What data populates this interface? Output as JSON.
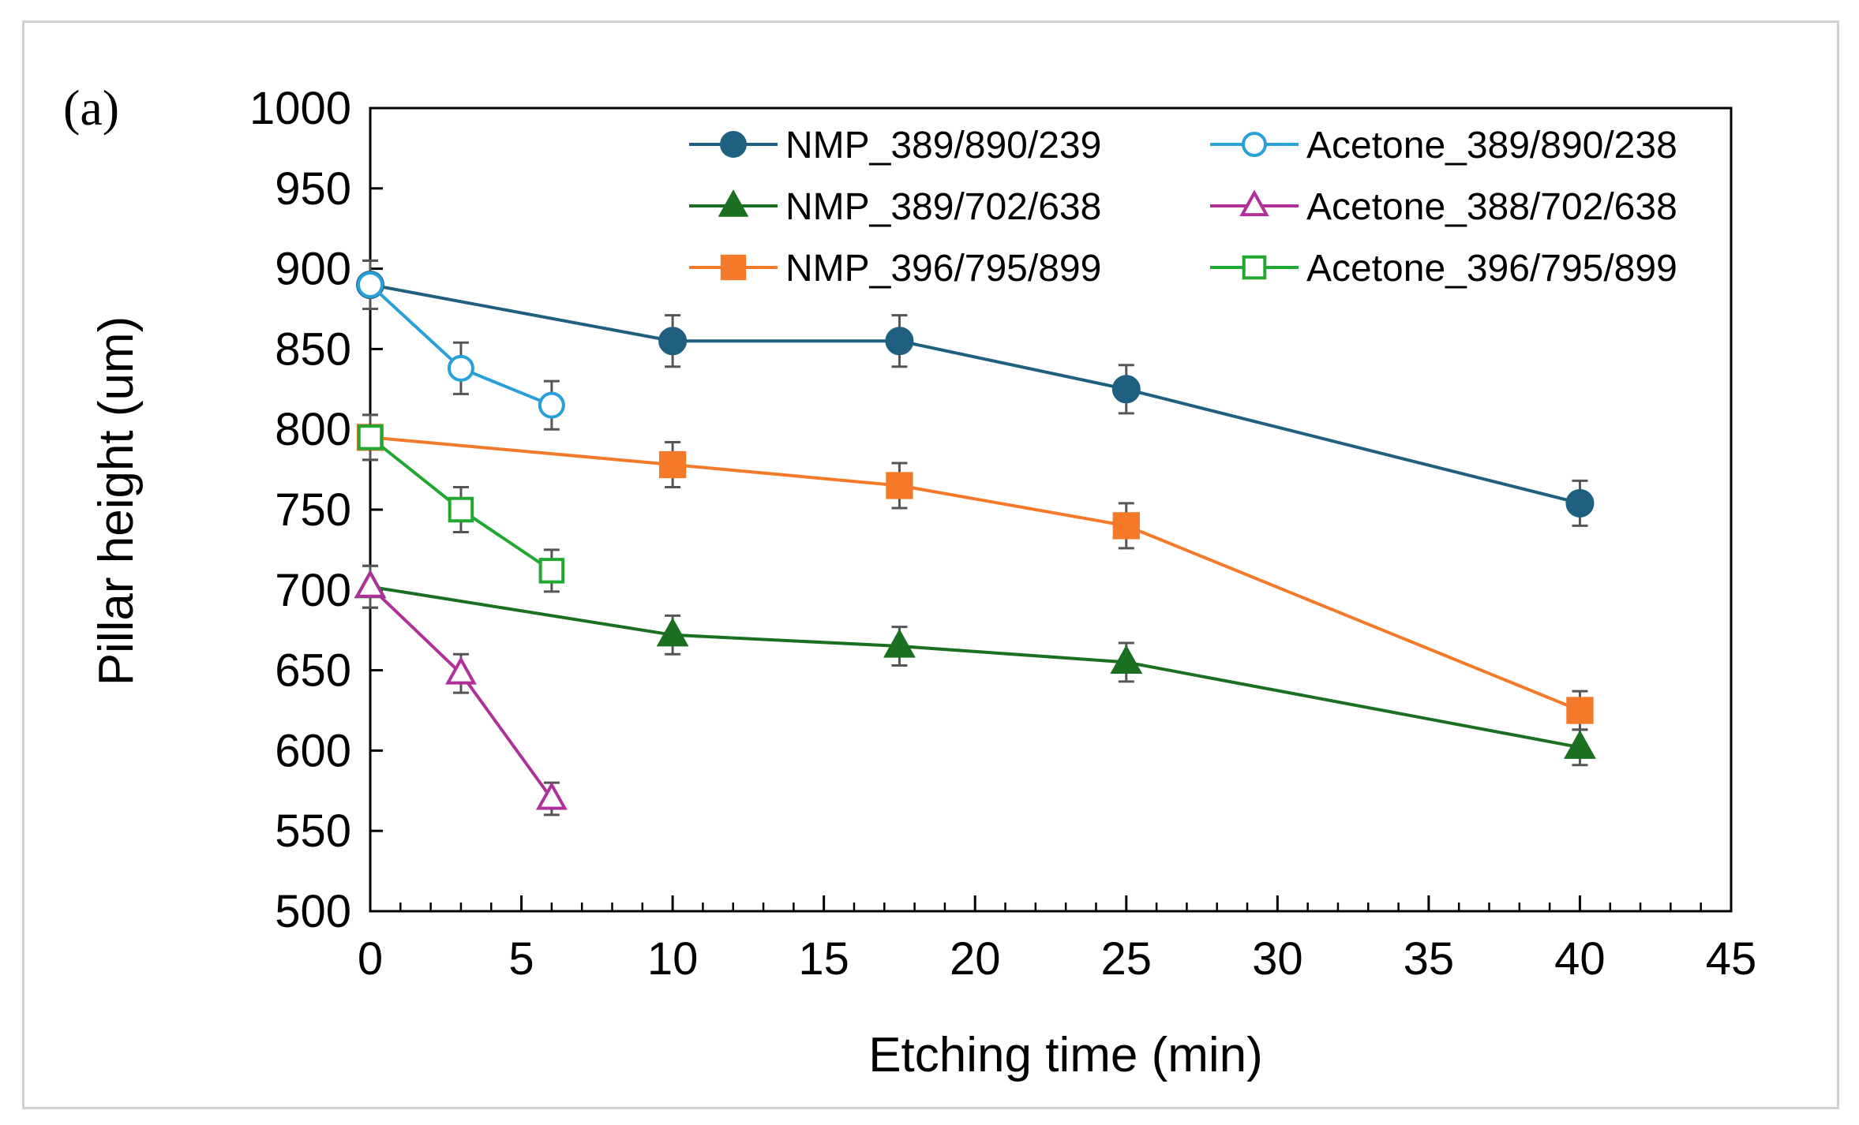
{
  "chart_data": {
    "type": "line",
    "panel_label": "(a)",
    "xlabel": "Etching time (min)",
    "ylabel": "Pillar height (um)",
    "xlim": [
      0,
      45
    ],
    "ylim": [
      500,
      1000
    ],
    "xticks": [
      0,
      5,
      10,
      15,
      20,
      25,
      30,
      35,
      40,
      45
    ],
    "yticks": [
      500,
      550,
      600,
      650,
      700,
      750,
      800,
      850,
      900,
      950,
      1000
    ],
    "legend_position": "top-right",
    "grid": false,
    "series": [
      {
        "name": "NMP_389/890/239",
        "color": "#1f5f7f",
        "marker": "circle",
        "filled": true,
        "x": [
          0,
          10,
          17.5,
          25,
          40
        ],
        "y": [
          890,
          855,
          855,
          825,
          754
        ],
        "err": [
          15,
          16,
          16,
          15,
          14
        ]
      },
      {
        "name": "Acetone_389/890/238",
        "color": "#2aa0d8",
        "marker": "circle",
        "filled": false,
        "x": [
          0,
          3,
          6
        ],
        "y": [
          890,
          838,
          815
        ],
        "err": [
          15,
          16,
          15
        ]
      },
      {
        "name": "NMP_389/702/638",
        "color": "#1a7020",
        "marker": "triangle",
        "filled": true,
        "x": [
          0,
          10,
          17.5,
          25,
          40
        ],
        "y": [
          702,
          672,
          665,
          655,
          602
        ],
        "err": [
          13,
          12,
          12,
          12,
          11
        ]
      },
      {
        "name": "Acetone_388/702/638",
        "color": "#b0309a",
        "marker": "triangle",
        "filled": false,
        "x": [
          0,
          3,
          6
        ],
        "y": [
          702,
          648,
          570
        ],
        "err": [
          13,
          12,
          10
        ]
      },
      {
        "name": "NMP_396/795/899",
        "color": "#f47a2a",
        "marker": "square",
        "filled": true,
        "x": [
          0,
          10,
          17.5,
          25,
          40
        ],
        "y": [
          795,
          778,
          765,
          740,
          625
        ],
        "err": [
          14,
          14,
          14,
          14,
          12
        ]
      },
      {
        "name": "Acetone_396/795/899",
        "color": "#22a830",
        "marker": "square",
        "filled": false,
        "x": [
          0,
          3,
          6
        ],
        "y": [
          795,
          750,
          712
        ],
        "err": [
          14,
          14,
          13
        ]
      }
    ]
  }
}
